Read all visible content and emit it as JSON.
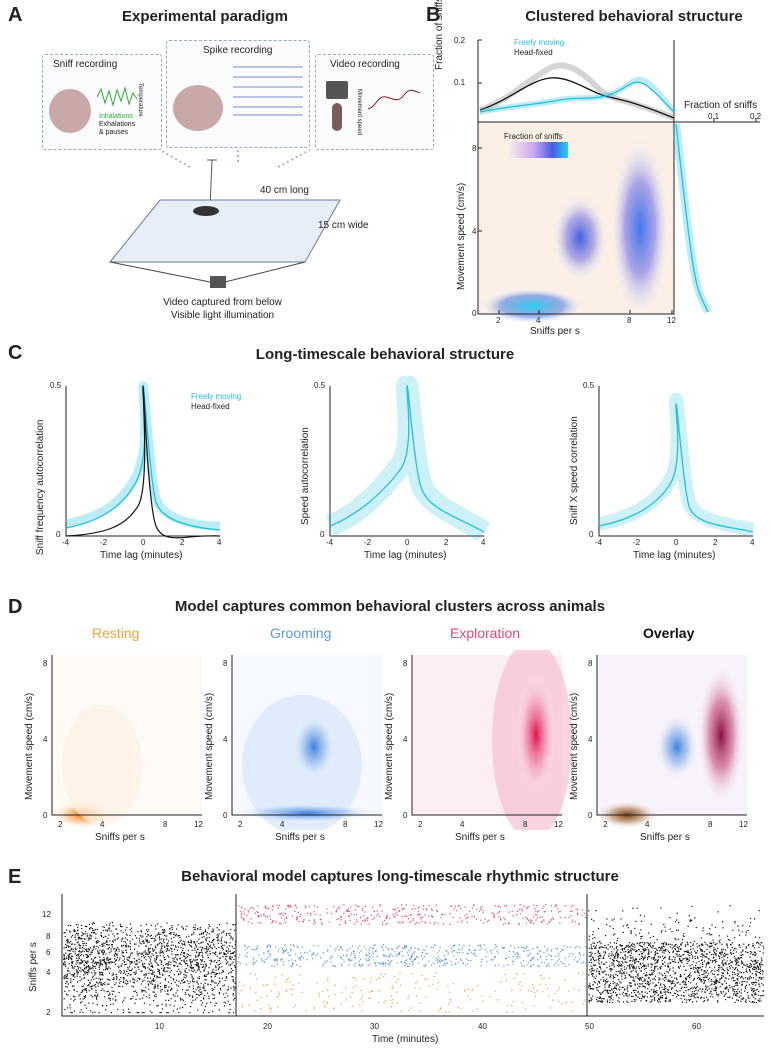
{
  "panels": {
    "a": {
      "letter": "A",
      "title": "Experimental paradigm",
      "sniff_box": "Sniff recording",
      "spike_box": "Spike recording",
      "video_box": "Video recording",
      "sniff_temp": "Temperature",
      "sniff_legend1": "Inhalations",
      "sniff_legend2": "Exhalations",
      "sniff_legend3": "& pauses",
      "movement_speed": "Movement speed",
      "length": "40 cm long",
      "width": "15 cm wide",
      "caption1": "Video captured from below",
      "caption2": "Visible light illumination"
    },
    "b": {
      "letter": "B",
      "title": "Clustered behavioral structure",
      "legend_free": "Freely moving",
      "legend_head": "Head-fixed",
      "ylab_top": "Fraction of sniffs",
      "ylab_main": "Movement speed (cm/s)",
      "xlab": "Sniffs per s",
      "right_label": "Fraction of sniffs",
      "colorbar_label": "Fraction of sniffs",
      "yticks_top": [
        "0.2",
        "0.1",
        "0"
      ],
      "yticks_main": [
        "8",
        "4",
        "0"
      ],
      "xticks": [
        "2",
        "4",
        "8",
        "12"
      ],
      "rticks": [
        "0.1",
        "0.2"
      ]
    },
    "c": {
      "letter": "C",
      "title": "Long-timescale behavioral structure",
      "ylabels": [
        "Sniff frequency autocorrelation",
        "Speed autocorrelation",
        "Sniff X speed correlation"
      ],
      "xlabel": "Time lag (minutes)",
      "xticks": [
        "-4",
        "-2",
        "0",
        "2",
        "4"
      ],
      "yticks": [
        "0.5",
        "0"
      ],
      "legend_free": "Freely moving",
      "legend_head": "Head-fixed"
    },
    "d": {
      "letter": "D",
      "title": "Model captures common behavioral clusters across animals",
      "labels": [
        "Resting",
        "Grooming",
        "Exploration",
        "Overlay"
      ],
      "label_colors": [
        "#f0a23a",
        "#5b9ad8",
        "#e04a80",
        "#111111"
      ],
      "ylabel": "Movement speed (cm/s)",
      "xlabel": "Sniffs per s",
      "yticks": [
        "8",
        "4",
        "0"
      ],
      "xticks": [
        "2",
        "4",
        "8",
        "12"
      ]
    },
    "e": {
      "letter": "E",
      "title": "Behavioral model captures long-timescale rhythmic structure",
      "ylabel": "Sniffs per s",
      "xlabel": "Time (minutes)",
      "yticks": [
        "12",
        "8",
        "6",
        "4",
        "2"
      ],
      "xticks": [
        "10",
        "20",
        "30",
        "40",
        "50",
        "60"
      ]
    }
  },
  "colors": {
    "free": "#22c0dd",
    "head": "#111111",
    "rest": "#f0a23a",
    "groom": "#5b9ad8",
    "explore": "#e04a80"
  }
}
